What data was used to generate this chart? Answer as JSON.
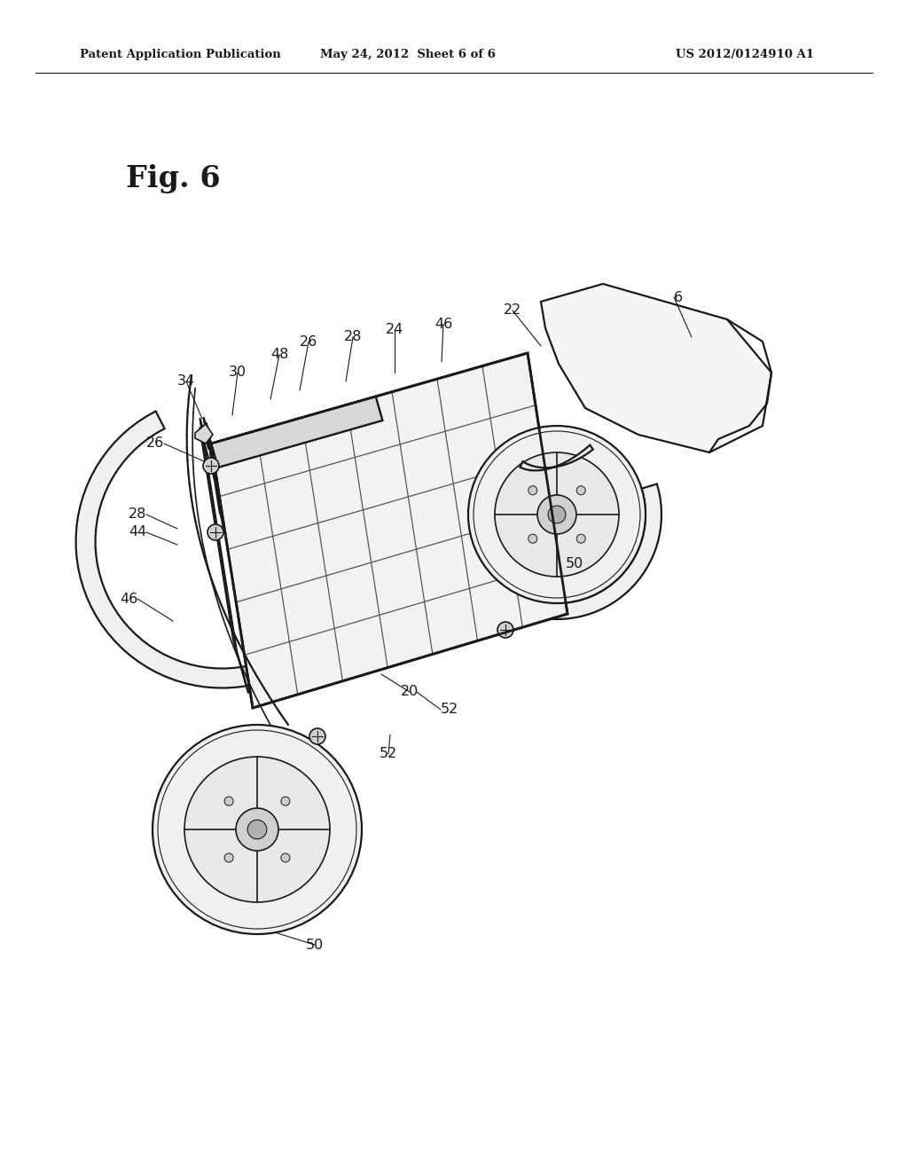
{
  "background_color": "#ffffff",
  "header_left": "Patent Application Publication",
  "header_center": "May 24, 2012  Sheet 6 of 6",
  "header_right": "US 2012/0124910 A1",
  "fig_label": "Fig. 6",
  "line_color": "#1a1a1a",
  "fill_light": "#f0f0f0",
  "fill_mid": "#e0e0e0",
  "fill_dark": "#c8c8c8",
  "header_fontsize": 9.5,
  "fig_label_fontsize": 24,
  "label_fontsize": 11.5
}
